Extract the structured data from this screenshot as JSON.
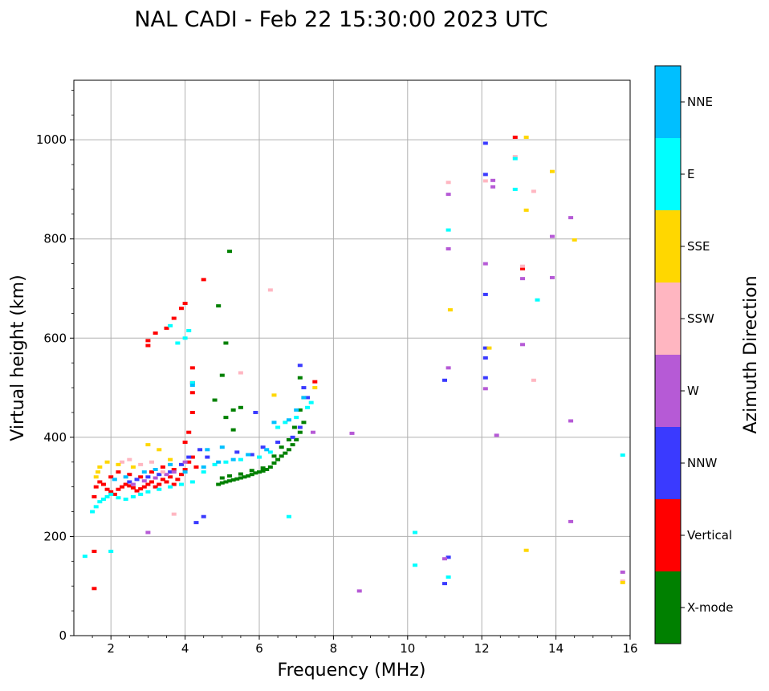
{
  "chart_data": {
    "type": "scatter",
    "title": "NAL CADI - Feb 22 15:30:00 2023 UTC",
    "xlabel": "Frequency (MHz)",
    "ylabel": "Virtual height (km)",
    "xlim": [
      1,
      16
    ],
    "ylim": [
      0,
      1120
    ],
    "xticks": [
      2,
      4,
      6,
      8,
      10,
      12,
      14,
      16
    ],
    "yticks": [
      0,
      200,
      400,
      600,
      800,
      1000
    ],
    "grid": true,
    "colorbar": {
      "label": "Azimuth Direction",
      "categories": [
        {
          "name": "X-mode",
          "color": "#008000"
        },
        {
          "name": "Vertical",
          "color": "#ff0000"
        },
        {
          "name": "NNW",
          "color": "#3a3aff"
        },
        {
          "name": "W",
          "color": "#b65ad6"
        },
        {
          "name": "SSW",
          "color": "#ffb6c1"
        },
        {
          "name": "SSE",
          "color": "#ffd700"
        },
        {
          "name": "E",
          "color": "#00ffff"
        },
        {
          "name": "NNE",
          "color": "#00bfff"
        }
      ]
    },
    "series": [
      {
        "name": "X-mode",
        "points": [
          [
            4.9,
            305
          ],
          [
            5.0,
            308
          ],
          [
            5.1,
            310
          ],
          [
            5.2,
            312
          ],
          [
            5.3,
            314
          ],
          [
            5.4,
            316
          ],
          [
            5.5,
            318
          ],
          [
            5.6,
            320
          ],
          [
            5.7,
            322
          ],
          [
            5.8,
            325
          ],
          [
            5.9,
            328
          ],
          [
            6.0,
            330
          ],
          [
            6.1,
            332
          ],
          [
            6.2,
            335
          ],
          [
            6.3,
            340
          ],
          [
            6.4,
            348
          ],
          [
            6.5,
            355
          ],
          [
            6.6,
            362
          ],
          [
            6.7,
            368
          ],
          [
            6.8,
            375
          ],
          [
            6.9,
            385
          ],
          [
            7.0,
            395
          ],
          [
            7.1,
            410
          ],
          [
            7.2,
            430
          ],
          [
            5.0,
            318
          ],
          [
            5.2,
            322
          ],
          [
            5.5,
            326
          ],
          [
            5.8,
            333
          ],
          [
            6.1,
            338
          ],
          [
            6.4,
            362
          ],
          [
            6.6,
            380
          ],
          [
            6.8,
            395
          ],
          [
            6.95,
            420
          ],
          [
            7.1,
            455
          ],
          [
            7.2,
            480
          ],
          [
            7.1,
            520
          ],
          [
            5.2,
            775
          ],
          [
            4.9,
            665
          ],
          [
            5.1,
            590
          ],
          [
            5.0,
            525
          ],
          [
            4.8,
            475
          ],
          [
            5.3,
            455
          ],
          [
            5.5,
            460
          ],
          [
            5.3,
            415
          ],
          [
            5.1,
            440
          ]
        ]
      },
      {
        "name": "Vertical",
        "points": [
          [
            1.55,
            280
          ],
          [
            1.6,
            300
          ],
          [
            1.7,
            310
          ],
          [
            1.8,
            305
          ],
          [
            1.9,
            295
          ],
          [
            2.0,
            290
          ],
          [
            2.1,
            285
          ],
          [
            2.2,
            295
          ],
          [
            2.3,
            300
          ],
          [
            2.4,
            305
          ],
          [
            2.5,
            302
          ],
          [
            2.6,
            298
          ],
          [
            2.7,
            292
          ],
          [
            2.8,
            296
          ],
          [
            2.9,
            300
          ],
          [
            3.0,
            305
          ],
          [
            3.1,
            310
          ],
          [
            3.2,
            300
          ],
          [
            3.3,
            305
          ],
          [
            3.4,
            315
          ],
          [
            3.5,
            310
          ],
          [
            3.6,
            320
          ],
          [
            3.7,
            305
          ],
          [
            3.8,
            315
          ],
          [
            3.9,
            325
          ],
          [
            4.0,
            335
          ],
          [
            4.1,
            350
          ],
          [
            4.2,
            360
          ],
          [
            4.3,
            340
          ],
          [
            4.2,
            510
          ],
          [
            4.2,
            540
          ],
          [
            4.2,
            490
          ],
          [
            4.0,
            670
          ],
          [
            3.9,
            660
          ],
          [
            3.7,
            640
          ],
          [
            3.5,
            620
          ],
          [
            3.2,
            610
          ],
          [
            3.0,
            595
          ],
          [
            3.0,
            585
          ],
          [
            4.5,
            718
          ],
          [
            1.55,
            95
          ],
          [
            1.55,
            170
          ],
          [
            2.0,
            320
          ],
          [
            2.2,
            330
          ],
          [
            2.5,
            325
          ],
          [
            2.8,
            320
          ],
          [
            3.1,
            330
          ],
          [
            3.4,
            340
          ],
          [
            3.7,
            335
          ],
          [
            4.0,
            390
          ],
          [
            4.1,
            410
          ],
          [
            4.2,
            450
          ],
          [
            12.9,
            1005
          ],
          [
            13.1,
            740
          ],
          [
            7.5,
            512
          ]
        ]
      },
      {
        "name": "NNW",
        "points": [
          [
            2.5,
            310
          ],
          [
            2.7,
            315
          ],
          [
            3.0,
            320
          ],
          [
            3.3,
            325
          ],
          [
            3.6,
            330
          ],
          [
            3.9,
            345
          ],
          [
            4.1,
            360
          ],
          [
            4.4,
            375
          ],
          [
            4.6,
            360
          ],
          [
            5.4,
            370
          ],
          [
            5.8,
            365
          ],
          [
            6.1,
            380
          ],
          [
            6.5,
            390
          ],
          [
            6.9,
            400
          ],
          [
            7.1,
            420
          ],
          [
            7.3,
            480
          ],
          [
            7.2,
            500
          ],
          [
            7.1,
            545
          ],
          [
            4.5,
            240
          ],
          [
            4.3,
            228
          ],
          [
            11.0,
            515
          ],
          [
            11.0,
            105
          ],
          [
            12.1,
            993
          ],
          [
            12.1,
            930
          ],
          [
            12.1,
            580
          ],
          [
            12.1,
            560
          ],
          [
            12.1,
            520
          ],
          [
            12.1,
            688
          ],
          [
            11.1,
            158
          ],
          [
            5.9,
            450
          ]
        ]
      },
      {
        "name": "W",
        "points": [
          [
            2.6,
            305
          ],
          [
            2.9,
            312
          ],
          [
            3.2,
            318
          ],
          [
            3.5,
            325
          ],
          [
            3.7,
            330
          ],
          [
            4.0,
            350
          ],
          [
            3.0,
            208
          ],
          [
            11.1,
            890
          ],
          [
            11.1,
            780
          ],
          [
            11.1,
            540
          ],
          [
            11.0,
            155
          ],
          [
            12.3,
            918
          ],
          [
            12.3,
            905
          ],
          [
            12.1,
            750
          ],
          [
            12.1,
            498
          ],
          [
            12.4,
            404
          ],
          [
            13.1,
            720
          ],
          [
            13.1,
            587
          ],
          [
            13.9,
            805
          ],
          [
            13.9,
            722
          ],
          [
            14.4,
            843
          ],
          [
            14.4,
            433
          ],
          [
            14.4,
            230
          ],
          [
            8.5,
            408
          ],
          [
            8.7,
            90
          ],
          [
            15.8,
            128
          ],
          [
            7.45,
            410
          ]
        ]
      },
      {
        "name": "SSW",
        "points": [
          [
            2.3,
            350
          ],
          [
            2.5,
            355
          ],
          [
            2.8,
            345
          ],
          [
            3.1,
            350
          ],
          [
            3.4,
            330
          ],
          [
            3.7,
            245
          ],
          [
            12.9,
            966
          ],
          [
            13.4,
            896
          ],
          [
            13.1,
            745
          ],
          [
            6.3,
            697
          ],
          [
            5.5,
            530
          ],
          [
            11.1,
            914
          ],
          [
            12.1,
            917
          ],
          [
            13.4,
            515
          ],
          [
            15.8,
            110
          ]
        ]
      },
      {
        "name": "SSE",
        "points": [
          [
            1.6,
            320
          ],
          [
            1.65,
            330
          ],
          [
            1.7,
            340
          ],
          [
            1.9,
            350
          ],
          [
            2.2,
            345
          ],
          [
            2.6,
            340
          ],
          [
            3.0,
            385
          ],
          [
            3.3,
            375
          ],
          [
            3.6,
            355
          ],
          [
            12.2,
            580
          ],
          [
            13.2,
            1005
          ],
          [
            13.2,
            858
          ],
          [
            13.9,
            936
          ],
          [
            14.5,
            798
          ],
          [
            11.15,
            657
          ],
          [
            13.2,
            172
          ],
          [
            15.8,
            107
          ],
          [
            7.5,
            500
          ],
          [
            6.4,
            485
          ]
        ]
      },
      {
        "name": "E",
        "points": [
          [
            1.5,
            250
          ],
          [
            1.6,
            260
          ],
          [
            1.7,
            270
          ],
          [
            1.8,
            275
          ],
          [
            1.9,
            280
          ],
          [
            2.0,
            285
          ],
          [
            2.2,
            278
          ],
          [
            2.4,
            275
          ],
          [
            2.6,
            280
          ],
          [
            2.8,
            285
          ],
          [
            3.0,
            290
          ],
          [
            3.3,
            295
          ],
          [
            3.6,
            300
          ],
          [
            3.9,
            305
          ],
          [
            4.2,
            310
          ],
          [
            4.5,
            330
          ],
          [
            4.8,
            345
          ],
          [
            5.1,
            350
          ],
          [
            5.5,
            355
          ],
          [
            6.0,
            360
          ],
          [
            6.3,
            370
          ],
          [
            6.5,
            420
          ],
          [
            6.7,
            430
          ],
          [
            7.0,
            440
          ],
          [
            7.3,
            460
          ],
          [
            7.4,
            470
          ],
          [
            4.0,
            600
          ],
          [
            3.8,
            590
          ],
          [
            3.6,
            625
          ],
          [
            4.1,
            615
          ],
          [
            4.2,
            510
          ],
          [
            6.8,
            240
          ],
          [
            1.3,
            160
          ],
          [
            2.0,
            170
          ],
          [
            12.9,
            962
          ],
          [
            12.9,
            900
          ],
          [
            13.5,
            677
          ],
          [
            10.2,
            208
          ],
          [
            10.2,
            142
          ],
          [
            11.1,
            118
          ],
          [
            15.8,
            364
          ],
          [
            11.1,
            818
          ]
        ]
      },
      {
        "name": "NNE",
        "points": [
          [
            2.1,
            315
          ],
          [
            2.4,
            320
          ],
          [
            2.9,
            330
          ],
          [
            3.2,
            335
          ],
          [
            3.6,
            345
          ],
          [
            4.0,
            330
          ],
          [
            4.5,
            340
          ],
          [
            4.9,
            350
          ],
          [
            5.3,
            355
          ],
          [
            5.7,
            365
          ],
          [
            6.2,
            375
          ],
          [
            6.4,
            430
          ],
          [
            6.8,
            435
          ],
          [
            7.0,
            455
          ],
          [
            7.2,
            480
          ],
          [
            4.2,
            505
          ],
          [
            4.6,
            375
          ],
          [
            5.0,
            380
          ]
        ]
      }
    ]
  }
}
